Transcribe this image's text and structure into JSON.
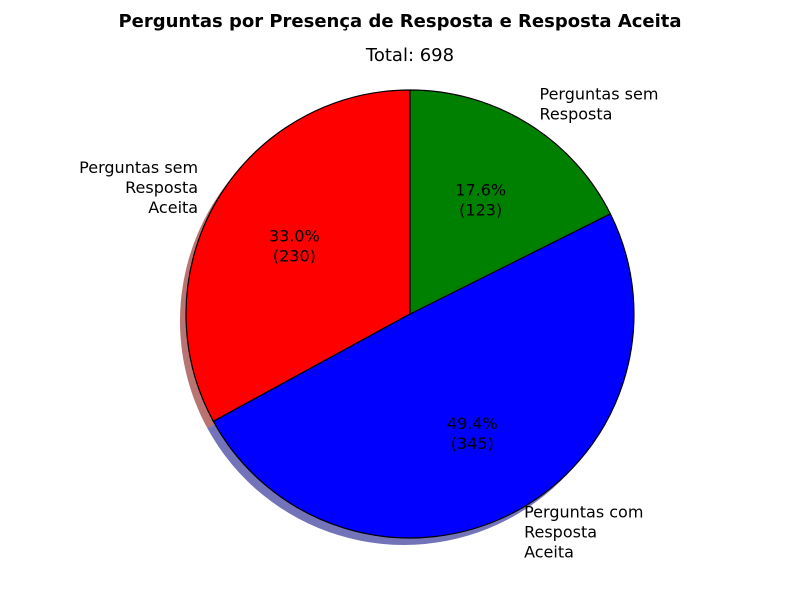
{
  "chart_data": {
    "type": "pie",
    "title": "Perguntas por Presença de Resposta e Resposta Aceita",
    "subtitle": "Total: 698",
    "slices": [
      {
        "label": [
          "Perguntas sem",
          "Resposta",
          "Aceita"
        ],
        "value": 230,
        "percent_label": "33.0%",
        "count_label": "(230)",
        "color": "#ff0000"
      },
      {
        "label": [
          "Perguntas com",
          "Resposta",
          "Aceita"
        ],
        "value": 345,
        "percent_label": "49.4%",
        "count_label": "(345)",
        "color": "#0000ff"
      },
      {
        "label": [
          "Perguntas sem",
          "Resposta"
        ],
        "value": 123,
        "percent_label": "17.6%",
        "count_label": "(123)",
        "color": "#008000"
      }
    ],
    "start_angle_deg": 90,
    "direction": "counterclockwise",
    "shadow": true,
    "edge_color": "#000000"
  }
}
